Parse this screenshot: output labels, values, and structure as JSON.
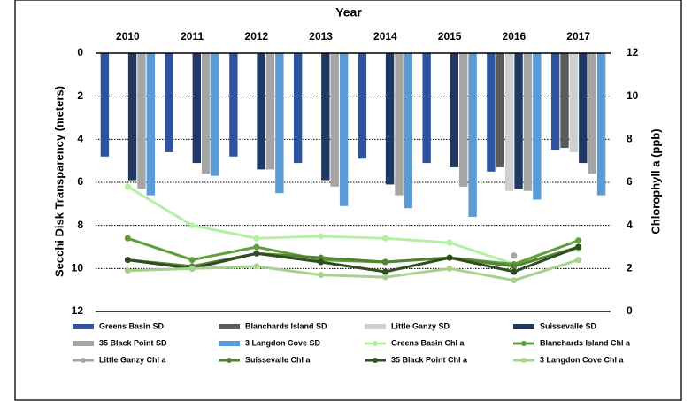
{
  "chart_data": {
    "type": "bar",
    "x_label": "Year",
    "y_label": "Secchi Disk Transparency  (meters)",
    "y2_label": "Chlorophyll a (ppb)",
    "categories": [
      "2010",
      "2011",
      "2012",
      "2013",
      "2014",
      "2015",
      "2016",
      "2017"
    ],
    "ylim": [
      0,
      12
    ],
    "y_inverted": true,
    "yticks": [
      0,
      2,
      4,
      6,
      8,
      10,
      12
    ],
    "y2lim": [
      0,
      12
    ],
    "y2ticks": [
      0,
      2,
      4,
      6,
      8,
      10,
      12
    ],
    "grid": true,
    "legend": "bottom",
    "series": [
      {
        "name": "Greens Basin SD",
        "type": "bar",
        "color": "#2e54a0",
        "values": [
          4.8,
          4.6,
          4.8,
          5.1,
          4.9,
          5.1,
          5.5,
          4.5
        ]
      },
      {
        "name": "Blanchards Island SD",
        "type": "bar",
        "color": "#5a5a5a",
        "values": [
          null,
          null,
          null,
          null,
          null,
          null,
          5.3,
          4.4
        ]
      },
      {
        "name": "Little Ganzy SD",
        "type": "bar",
        "color": "#cfcfcf",
        "values": [
          null,
          null,
          null,
          null,
          null,
          null,
          6.4,
          4.6
        ]
      },
      {
        "name": "Suissevalle SD",
        "type": "bar",
        "color": "#1f3864",
        "values": [
          5.9,
          5.1,
          5.4,
          5.9,
          6.1,
          5.3,
          6.3,
          5.1
        ]
      },
      {
        "name": "35 Black Point SD",
        "type": "bar",
        "color": "#a5a5a5",
        "values": [
          6.3,
          5.6,
          5.4,
          6.2,
          6.6,
          6.2,
          6.4,
          5.6
        ]
      },
      {
        "name": "3 Langdon Cove SD",
        "type": "bar",
        "color": "#5b9bd5",
        "values": [
          6.6,
          5.7,
          6.5,
          7.1,
          7.2,
          7.6,
          6.8,
          6.6
        ]
      },
      {
        "name": "Greens Basin  Chl a",
        "type": "line",
        "axis": "y2",
        "color": "#b3f0a2",
        "values": [
          5.8,
          4.0,
          3.4,
          3.5,
          3.4,
          3.2,
          2.2,
          2.9
        ]
      },
      {
        "name": "Blanchards Island Chl a",
        "type": "line",
        "axis": "y2",
        "color": "#5f9e3c",
        "values": [
          3.4,
          2.4,
          3.0,
          2.4,
          2.3,
          2.5,
          2.2,
          3.3
        ]
      },
      {
        "name": "Little Ganzy Chl a",
        "type": "line",
        "axis": "y2",
        "color": "#a5a5a5",
        "values": [
          null,
          null,
          null,
          null,
          null,
          null,
          2.6,
          null
        ]
      },
      {
        "name": "Suissevalle Chl a",
        "type": "line",
        "axis": "y2",
        "color": "#548235",
        "values": [
          2.4,
          2.1,
          2.7,
          2.5,
          2.3,
          2.5,
          2.1,
          3.0
        ]
      },
      {
        "name": "35 Black Point Chl a",
        "type": "line",
        "axis": "y2",
        "color": "#2f4d1f",
        "values": [
          2.4,
          2.0,
          2.7,
          2.3,
          1.85,
          2.5,
          1.85,
          3.0
        ]
      },
      {
        "name": "3 Langdon Cove Chl a",
        "type": "line",
        "axis": "y2",
        "color": "#a9d18e",
        "values": [
          1.9,
          2.0,
          2.1,
          1.7,
          1.6,
          2.0,
          1.45,
          2.4
        ]
      }
    ]
  }
}
